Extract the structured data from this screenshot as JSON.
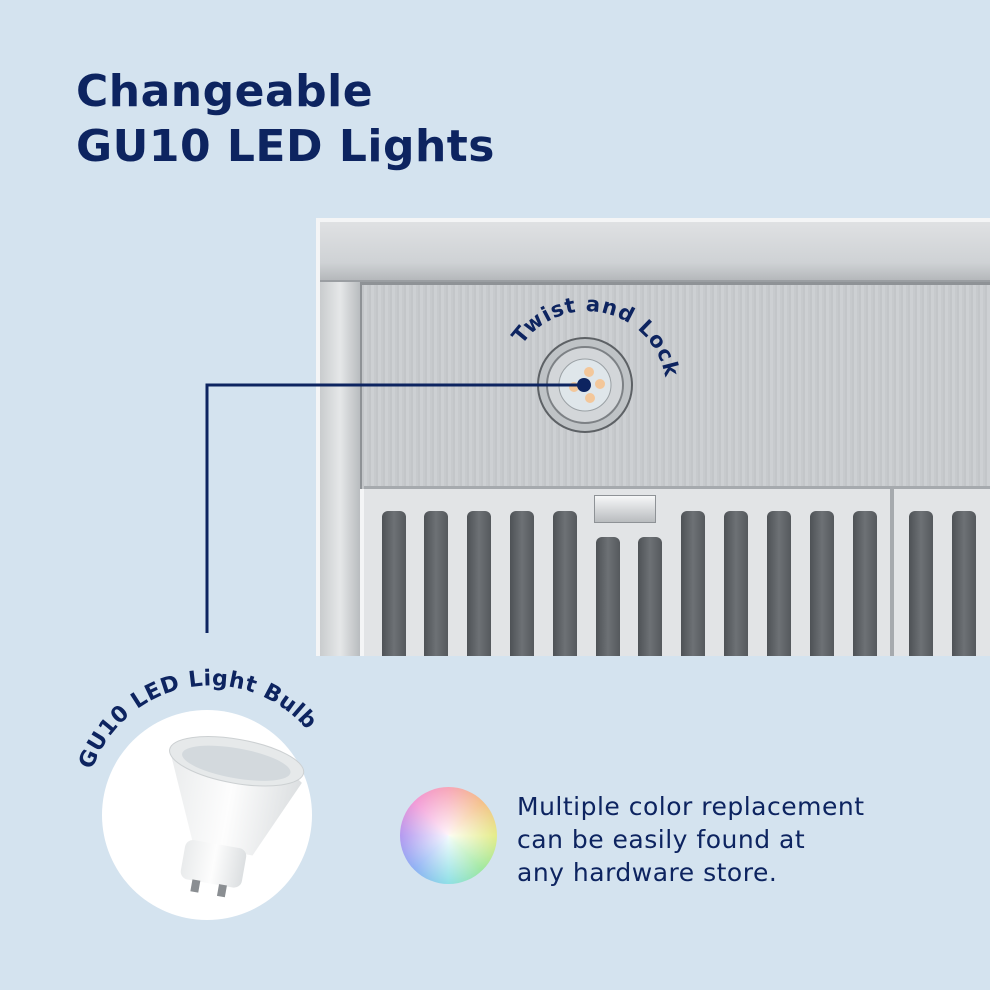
{
  "title": {
    "line1": "Changeable",
    "line2": "GU10 LED Lights"
  },
  "callouts": {
    "twist": "Twist and Lock",
    "bulb": "GU10 LED Light Bulb"
  },
  "description": {
    "line1": "Multiple color replacement",
    "line2": "can be easily found at",
    "line3": "any hardware store."
  },
  "colors": {
    "navy": "#0d2460",
    "background": "#d4e3ef"
  }
}
